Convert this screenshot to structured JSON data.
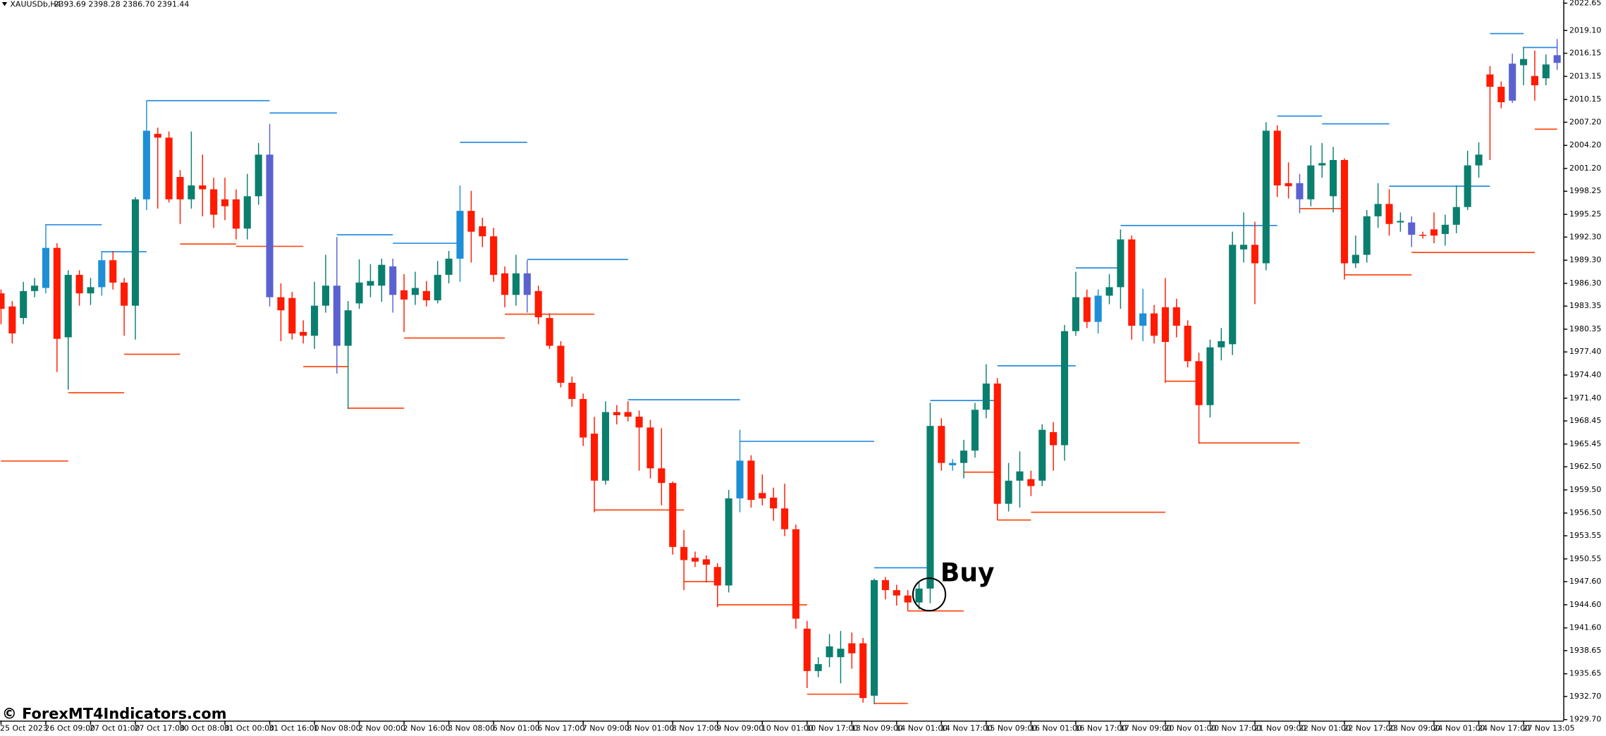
{
  "chart_data": {
    "type": "candlestick",
    "title": "XAUUSDb,H4",
    "subtitle": "2393.69 2398.28 2386.70 2391.44",
    "watermark": "© ForexMT4Indicators.com",
    "annotation": "Buy",
    "bull_color": "#0b7f6e",
    "bear_color": "#ff1a00",
    "ylim": [
      1929.7,
      2022.65
    ],
    "yticks": [
      2022.65,
      {
        "value": 2019.1,
        "label": "2019.10"
      },
      2016.15,
      2013.15,
      2010.15,
      {
        "value": 2007.2,
        "label": "2007.20"
      },
      {
        "value": 2004.2,
        "label": "2004.20"
      },
      {
        "value": 2001.2,
        "label": "2001.20"
      },
      1998.25,
      1995.25,
      {
        "value": 1992.3,
        "label": "1992.30"
      },
      {
        "value": 1989.3,
        "label": "1989.30"
      },
      {
        "value": 1986.3,
        "label": "1986.30"
      },
      1983.35,
      1980.35,
      {
        "value": 1977.4,
        "label": "1977.40"
      },
      {
        "value": 1974.4,
        "label": "1974.40"
      },
      {
        "value": 1971.4,
        "label": "1971.40"
      },
      1968.45,
      1965.45,
      {
        "value": 1962.5,
        "label": "1962.50"
      },
      {
        "value": 1959.5,
        "label": "1959.50"
      },
      {
        "value": 1956.5,
        "label": "1956.50"
      },
      1953.55,
      1950.55,
      {
        "value": 1947.6,
        "label": "1947.60"
      },
      {
        "value": 1944.6,
        "label": "1944.60"
      },
      {
        "value": 1941.6,
        "label": "1941.60"
      },
      1938.65,
      1935.65,
      {
        "value": 1932.7,
        "label": "1932.70"
      },
      {
        "value": 1929.7,
        "label": "1929.70"
      }
    ],
    "categories": [
      "25 Oct 2023",
      null,
      null,
      null,
      "26 Oct 09:00",
      null,
      null,
      null,
      "27 Oct 01:00",
      null,
      null,
      null,
      "27 Oct 17:00",
      null,
      null,
      null,
      "30 Oct 08:00",
      null,
      null,
      null,
      "31 Oct 00:00",
      null,
      null,
      null,
      "31 Oct 16:00",
      null,
      null,
      null,
      "1 Nov 08:00",
      null,
      null,
      null,
      "2 Nov 00:00",
      null,
      null,
      null,
      "2 Nov 16:00",
      null,
      null,
      null,
      "3 Nov 08:00",
      null,
      null,
      null,
      "6 Nov 01:00",
      null,
      null,
      null,
      "6 Nov 17:00",
      null,
      null,
      null,
      "7 Nov 09:00",
      null,
      null,
      null,
      "8 Nov 01:00",
      null,
      null,
      null,
      "8 Nov 17:00",
      null,
      null,
      null,
      "9 Nov 09:00",
      null,
      null,
      null,
      "10 Nov 01:00",
      null,
      null,
      null,
      "10 Nov 17:00",
      null,
      null,
      null,
      "13 Nov 09:00",
      null,
      null,
      null,
      "14 Nov 01:00",
      null,
      null,
      null,
      "14 Nov 17:00",
      null,
      null,
      null,
      "15 Nov 09:00",
      null,
      null,
      null,
      "16 Nov 01:00",
      null,
      null,
      null,
      "16 Nov 17:00",
      null,
      null,
      null,
      "17 Nov 09:00",
      null,
      null,
      null,
      "20 Nov 01:00",
      null,
      null,
      null,
      "20 Nov 17:00",
      null,
      null,
      null,
      "21 Nov 09:00",
      null,
      null,
      null,
      "22 Nov 01:00",
      null,
      null,
      null,
      "22 Nov 17:00",
      null,
      null,
      null,
      "23 Nov 09:00",
      null,
      null,
      null,
      "24 Nov 01:00",
      null,
      null,
      null,
      "24 Nov 17:00",
      null,
      null,
      null,
      "27 Nov 13:05",
      null,
      null,
      null
    ],
    "open": [
      1985.0,
      1983.3,
      1981.8,
      1985.3,
      1985.7,
      1990.9,
      1979.3,
      1987.4,
      1985.0,
      1985.8,
      1989.3,
      1986.4,
      1983.4,
      1997.2,
      2005.7,
      2005.2,
      2000.1,
      1997.2,
      1999.0,
      1998.5,
      1997.2,
      1997.2,
      1993.4,
      1997.6,
      2003.0,
      1984.5,
      1984.4,
      1980.0,
      1979.5,
      1983.4,
      1986.0,
      1978.2,
      1983.7,
      1986.0,
      1986.0,
      1988.5,
      1985.4,
      1984.8,
      1985.3,
      1984.1,
      1987.4,
      1989.5,
      1995.7,
      1993.7,
      1992.4,
      1987.6,
      1984.8,
      1987.6,
      1985.3,
      1981.8,
      1978.2,
      1973.4,
      1971.3,
      1966.8,
      1960.7,
      1969.6,
      1969.6,
      1969.0,
      1967.6,
      1962.3,
      1960.4,
      1952.1,
      1950.7,
      1950.5,
      1949.5,
      1947.1,
      1958.4,
      1963.3,
      1959.1,
      1958.5,
      1957.1,
      1954.4,
      1941.5,
      1936.0,
      1937.8,
      1937.8,
      1939.6,
      1939.6,
      1932.8,
      1947.8,
      1946.5,
      1945.8,
      1944.9,
      1946.7,
      1967.8,
      1963.0,
      1963.0,
      1964.6,
      1969.9,
      1973.3,
      1957.7,
      1960.7,
      1960.9,
      1960.7,
      1967.0,
      1965.3,
      1980.1,
      1984.5,
      1981.3,
      1984.7,
      1985.8,
      1992.0,
      1980.8,
      1982.4,
      1983.2,
      1983.2,
      1980.8,
      1976.2,
      1970.5,
      1978.0,
      1978.4,
      1990.7,
      1991.3,
      1988.9,
      2006.1,
      1999.3,
      1999.3,
      1997.2,
      2001.6,
      1997.6,
      2002.3,
      1988.9,
      1990.0,
      1995.0,
      1996.6,
      1994.2,
      1994.2,
      1992.6,
      1993.3,
      1992.7,
      1993.9,
      1996.2,
      2001.6,
      2013.4,
      2011.8,
      2010.0,
      2014.6,
      2013.2,
      2012.9,
      2014.9
    ],
    "high": [
      1985.5,
      1984.0,
      1986.5,
      1987.0,
      1994.0,
      1991.5,
      1988.0,
      1988.0,
      1987.0,
      1990.5,
      1990.5,
      1987.0,
      1997.5,
      2010.0,
      2006.5,
      2006.0,
      2001.0,
      2006.0,
      2003.0,
      2000.0,
      2000.0,
      1998.5,
      2000.5,
      2004.5,
      2007.0,
      1986.3,
      1985.2,
      1981.5,
      1986.5,
      1990.0,
      1992.3,
      1984.0,
      1989.4,
      1988.8,
      1989.5,
      1989.5,
      1987.5,
      1987.8,
      1986.6,
      1989.2,
      1990.5,
      1999.0,
      1998.3,
      1994.8,
      1993.5,
      1988.5,
      1990.0,
      1989.3,
      1986.0,
      1982.4,
      1978.8,
      1974.2,
      1972.0,
      1969.0,
      1971.0,
      1970.5,
      1971.0,
      1969.8,
      1968.6,
      1967.5,
      1960.6,
      1954.3,
      1951.5,
      1951.0,
      1950.0,
      1959.5,
      1967.3,
      1964.0,
      1961.5,
      1959.8,
      1960.3,
      1955.0,
      1942.5,
      1937.8,
      1940.8,
      1941.2,
      1941.0,
      1940.3,
      1948.0,
      1948.2,
      1947.2,
      1946.5,
      1947.6,
      1970.8,
      1968.8,
      1963.5,
      1966.0,
      1970.8,
      1975.8,
      1974.0,
      1963.0,
      1964.5,
      1962.0,
      1968.0,
      1968.3,
      1980.9,
      1987.8,
      1985.5,
      1985.5,
      1987.5,
      1993.3,
      1992.5,
      1985.6,
      1983.5,
      1987.0,
      1984.3,
      1981.5,
      1977.3,
      1979.0,
      1980.5,
      1993.0,
      1995.5,
      1994.3,
      2007.2,
      2006.8,
      2002.0,
      2000.5,
      2004.2,
      2004.5,
      2004.0,
      2002.5,
      1992.5,
      1995.8,
      1999.3,
      1998.5,
      1995.5,
      1995.0,
      1993.0,
      1995.5,
      1995.2,
      1999.0,
      2003.5,
      2004.6,
      2014.5,
      2012.5,
      2016.1,
      2017.0,
      2016.5,
      2016.0,
      2018.0
    ],
    "low": [
      1981.0,
      1978.5,
      1981.0,
      1984.5,
      1985.0,
      1974.8,
      1972.5,
      1983.4,
      1983.5,
      1984.7,
      1985.5,
      1979.5,
      1979.0,
      1995.8,
      1996.0,
      1996.8,
      1994.0,
      1996.0,
      1995.0,
      1993.5,
      1994.5,
      1992.0,
      1992.0,
      1996.5,
      1983.3,
      1978.8,
      1979.0,
      1978.5,
      1977.8,
      1982.5,
      1974.6,
      1970.0,
      1983.0,
      1984.5,
      1983.9,
      1982.5,
      1980.0,
      1983.5,
      1983.3,
      1983.7,
      1986.3,
      1986.5,
      1989.0,
      1991.0,
      1986.5,
      1983.2,
      1983.4,
      1982.5,
      1981.0,
      1977.8,
      1972.8,
      1970.3,
      1965.2,
      1956.6,
      1960.2,
      1968.0,
      1968.4,
      1962.0,
      1961.0,
      1957.5,
      1951.1,
      1946.5,
      1949.5,
      1947.5,
      1944.3,
      1946.2,
      1956.6,
      1957.2,
      1957.5,
      1955.5,
      1953.5,
      1941.5,
      1933.8,
      1935.2,
      1936.5,
      1934.4,
      1936.3,
      1931.9,
      1931.7,
      1945.3,
      1944.5,
      1943.8,
      1944.0,
      1944.8,
      1962.0,
      1962.0,
      1961.0,
      1963.7,
      1968.8,
      1955.6,
      1956.7,
      1957.2,
      1958.7,
      1960.0,
      1962.0,
      1963.3,
      1979.5,
      1980.5,
      1979.8,
      1983.6,
      1983.0,
      1979.0,
      1978.8,
      1978.5,
      1973.4,
      1979.3,
      1975.4,
      1965.5,
      1968.9,
      1976.3,
      1977.0,
      1989.0,
      1983.6,
      1988.0,
      1997.5,
      1997.3,
      1995.4,
      1996.3,
      2000.0,
      1995.5,
      1986.8,
      1988.3,
      1989.0,
      1993.5,
      1992.5,
      1993.0,
      1991.0,
      1992.1,
      1991.5,
      1991.2,
      1992.8,
      1995.8,
      2000.0,
      2002.3,
      2009.0,
      2009.7,
      2012.0,
      2010.0,
      2012.0,
      2014.0
    ],
    "close": [
      1983.0,
      1979.8,
      1985.3,
      1986.0,
      1990.9,
      1979.1,
      1987.4,
      1985.0,
      1985.8,
      1989.3,
      1986.4,
      1983.4,
      1997.2,
      2006.1,
      2005.2,
      1997.2,
      1997.2,
      1999.0,
      1998.5,
      1995.2,
      1996.3,
      1993.4,
      1997.6,
      2003.0,
      1984.5,
      1982.8,
      1979.8,
      1979.5,
      1983.4,
      1986.0,
      1978.2,
      1982.8,
      1986.4,
      1986.6,
      1988.7,
      1984.8,
      1984.2,
      1985.7,
      1984.1,
      1987.4,
      1989.5,
      1995.7,
      1993.0,
      1992.4,
      1987.4,
      1984.8,
      1987.6,
      1984.8,
      1981.9,
      1978.2,
      1973.4,
      1971.3,
      1966.3,
      1960.7,
      1969.6,
      1969.2,
      1969.0,
      1967.6,
      1962.3,
      1960.4,
      1952.1,
      1950.4,
      1950.2,
      1949.8,
      1947.1,
      1958.4,
      1963.3,
      1958.2,
      1958.4,
      1957.1,
      1954.4,
      1942.8,
      1936.0,
      1936.9,
      1939.2,
      1938.9,
      1938.3,
      1932.5,
      1947.8,
      1946.5,
      1945.8,
      1944.9,
      1946.7,
      1967.8,
      1963.0,
      1962.7,
      1964.6,
      1969.9,
      1973.3,
      1957.7,
      1960.7,
      1961.9,
      1960.0,
      1967.3,
      1965.3,
      1980.1,
      1984.5,
      1981.3,
      1984.7,
      1985.8,
      1992.0,
      1980.8,
      1982.4,
      1979.5,
      1978.7,
      1980.8,
      1976.2,
      1970.5,
      1978.0,
      1978.8,
      1991.3,
      1991.3,
      1988.9,
      2006.1,
      1999.0,
      1998.9,
      1997.2,
      2001.6,
      2001.9,
      2002.3,
      1988.9,
      1990.0,
      1995.0,
      1996.6,
      1994.0,
      1994.4,
      1992.6,
      1992.5,
      1992.5,
      1993.9,
      1996.2,
      2001.6,
      2003.0,
      2011.8,
      2009.8,
      2014.8,
      2015.4,
      2012.0,
      2014.7,
      2015.9
    ],
    "bar_colors": [
      null,
      null,
      null,
      null,
      "#1e8fd6",
      null,
      null,
      null,
      null,
      "#1e8fd6",
      null,
      null,
      null,
      "#1e8fd6",
      null,
      null,
      null,
      null,
      null,
      null,
      null,
      null,
      null,
      null,
      "#5b62cf",
      null,
      null,
      null,
      null,
      null,
      "#5b62cf",
      null,
      null,
      null,
      null,
      "#5b62cf",
      null,
      null,
      null,
      null,
      null,
      "#1e8fd6",
      null,
      null,
      null,
      null,
      null,
      "#5b62cf",
      null,
      null,
      null,
      null,
      null,
      null,
      null,
      null,
      null,
      null,
      null,
      null,
      null,
      null,
      null,
      null,
      null,
      null,
      "#1e8fd6",
      null,
      null,
      null,
      null,
      null,
      null,
      null,
      null,
      null,
      null,
      null,
      null,
      null,
      null,
      null,
      null,
      null,
      null,
      "#1e8fd6",
      null,
      null,
      null,
      null,
      null,
      null,
      null,
      null,
      null,
      null,
      null,
      null,
      "#1e8fd6",
      null,
      null,
      null,
      "#1e8fd6",
      null,
      null,
      null,
      null,
      null,
      null,
      null,
      null,
      null,
      null,
      null,
      null,
      null,
      "#5b62cf",
      null,
      null,
      null,
      null,
      null,
      null,
      null,
      null,
      null,
      "#5b62cf",
      null,
      null,
      null,
      null,
      null,
      null,
      null,
      null,
      "#5b62cf",
      null,
      null,
      null,
      "#5b62cf",
      null,
      "#1e8fd6"
    ],
    "levels": [
      {
        "value": 1993.9,
        "from": 4,
        "to": 9,
        "color": "#2a8de0"
      },
      {
        "value": 1990.4,
        "from": 9,
        "to": 13,
        "color": "#2a8de0"
      },
      {
        "value": 2010.0,
        "from": 13,
        "to": 24,
        "color": "#2a8de0"
      },
      {
        "value": 2008.4,
        "from": 24,
        "to": 30,
        "color": "#2a8de0"
      },
      {
        "value": 1992.6,
        "from": 30,
        "to": 35,
        "color": "#2a8de0"
      },
      {
        "value": 1991.5,
        "from": 35,
        "to": 41,
        "color": "#2a8de0"
      },
      {
        "value": 2004.6,
        "from": 41,
        "to": 47,
        "color": "#2a8de0"
      },
      {
        "value": 1989.4,
        "from": 47,
        "to": 56,
        "color": "#2a8de0"
      },
      {
        "value": 1971.2,
        "from": 56,
        "to": 66,
        "color": "#2a8de0"
      },
      {
        "value": 1965.8,
        "from": 66,
        "to": 78,
        "color": "#2a8de0"
      },
      {
        "value": 1949.4,
        "from": 78,
        "to": 83,
        "color": "#2a8de0"
      },
      {
        "value": 1971.1,
        "from": 83,
        "to": 89,
        "color": "#2a8de0"
      },
      {
        "value": 1975.6,
        "from": 89,
        "to": 96,
        "color": "#2a8de0"
      },
      {
        "value": 1988.3,
        "from": 96,
        "to": 100,
        "color": "#2a8de0"
      },
      {
        "value": 1993.8,
        "from": 100,
        "to": 114,
        "color": "#2a8de0"
      },
      {
        "value": 2008.0,
        "from": 114,
        "to": 118,
        "color": "#2a8de0"
      },
      {
        "value": 2007.0,
        "from": 118,
        "to": 124,
        "color": "#2a8de0"
      },
      {
        "value": 1998.9,
        "from": 124,
        "to": 133,
        "color": "#2a8de0"
      },
      {
        "value": 2018.7,
        "from": 133,
        "to": 136,
        "color": "#2a8de0"
      },
      {
        "value": 2016.9,
        "from": 136,
        "to": 139,
        "color": "#2a8de0"
      },
      {
        "value": 1963.25,
        "from": 0,
        "to": 6,
        "color": "#ff4a12"
      },
      {
        "value": 1972.1,
        "from": 6,
        "to": 11,
        "color": "#ff4a12"
      },
      {
        "value": 1977.1,
        "from": 11,
        "to": 16,
        "color": "#ff4a12"
      },
      {
        "value": 1991.4,
        "from": 16,
        "to": 21,
        "color": "#ff4a12"
      },
      {
        "value": 1991.1,
        "from": 21,
        "to": 27,
        "color": "#ff4a12"
      },
      {
        "value": 1975.5,
        "from": 27,
        "to": 31,
        "color": "#ff4a12"
      },
      {
        "value": 1970.1,
        "from": 31,
        "to": 36,
        "color": "#ff4a12"
      },
      {
        "value": 1979.2,
        "from": 36,
        "to": 45,
        "color": "#ff4a12"
      },
      {
        "value": 1982.3,
        "from": 45,
        "to": 53,
        "color": "#ff4a12"
      },
      {
        "value": 1956.9,
        "from": 53,
        "to": 61,
        "color": "#ff4a12"
      },
      {
        "value": 1947.6,
        "from": 61,
        "to": 64,
        "color": "#ff4a12"
      },
      {
        "value": 1944.6,
        "from": 64,
        "to": 72,
        "color": "#ff4a12"
      },
      {
        "value": 1933.0,
        "from": 72,
        "to": 77,
        "color": "#ff4a12"
      },
      {
        "value": 1931.8,
        "from": 78,
        "to": 81,
        "color": "#ff4a12"
      },
      {
        "value": 1943.8,
        "from": 81,
        "to": 86,
        "color": "#ff4a12"
      },
      {
        "value": 1961.8,
        "from": 86,
        "to": 89,
        "color": "#ff4a12"
      },
      {
        "value": 1955.6,
        "from": 89,
        "to": 92,
        "color": "#ff4a12"
      },
      {
        "value": 1956.6,
        "from": 92,
        "to": 104,
        "color": "#ff4a12"
      },
      {
        "value": 1973.6,
        "from": 104,
        "to": 107,
        "color": "#ff4a12"
      },
      {
        "value": 1965.6,
        "from": 107,
        "to": 116,
        "color": "#ff4a12"
      },
      {
        "value": 1996.0,
        "from": 116,
        "to": 120,
        "color": "#ff4a12"
      },
      {
        "value": 1987.4,
        "from": 120,
        "to": 126,
        "color": "#ff4a12"
      },
      {
        "value": 1990.3,
        "from": 126,
        "to": 137,
        "color": "#ff4a12"
      },
      {
        "value": 2006.3,
        "from": 137,
        "to": 139,
        "color": "#ff4a12"
      }
    ]
  }
}
